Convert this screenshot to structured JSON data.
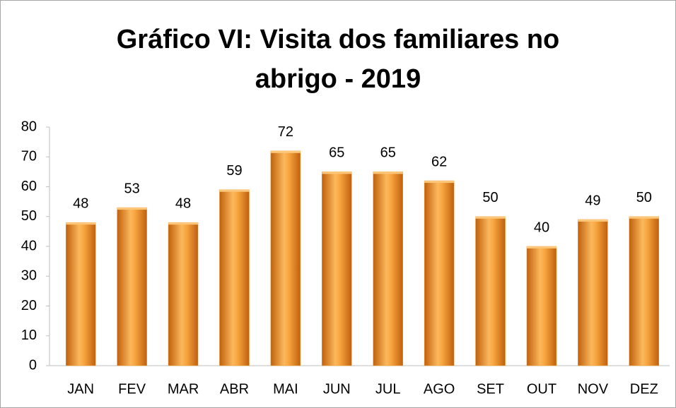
{
  "chart_data": {
    "type": "bar",
    "title": "Gráfico VI: Visita dos familiares no abrigo - 2019",
    "categories": [
      "JAN",
      "FEV",
      "MAR",
      "ABR",
      "MAI",
      "JUN",
      "JUL",
      "AGO",
      "SET",
      "OUT",
      "NOV",
      "DEZ"
    ],
    "values": [
      48,
      53,
      48,
      59,
      72,
      65,
      65,
      62,
      50,
      40,
      49,
      50
    ],
    "color": "#f39a2e",
    "ylim": [
      0,
      80
    ],
    "yticks": [
      0,
      10,
      20,
      30,
      40,
      50,
      60,
      70,
      80
    ],
    "grid": false
  }
}
